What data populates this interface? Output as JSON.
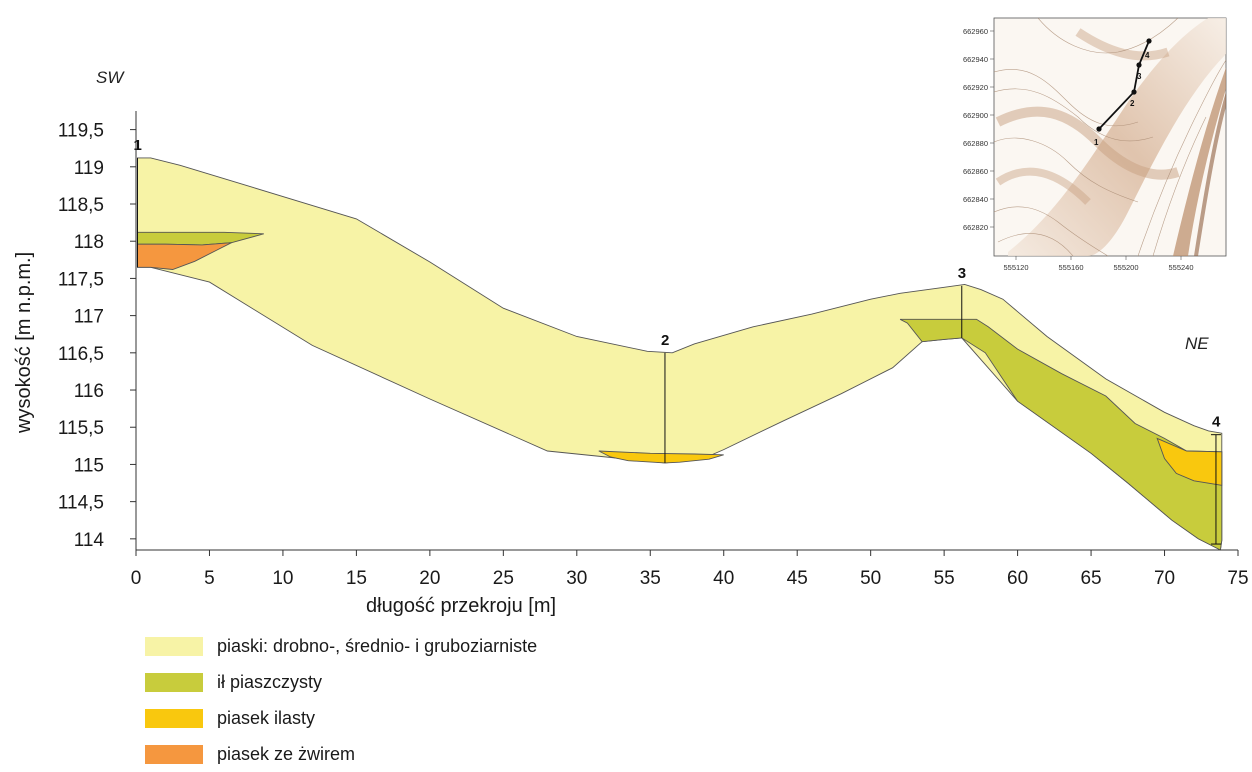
{
  "chart_data": {
    "type": "area",
    "xlabel": "długość przekroju [m]",
    "ylabel": "wysokość [m n.p.m.]",
    "xlim": [
      0,
      75
    ],
    "ylim": [
      113.85,
      119.75
    ],
    "x_ticks": [
      "0",
      "5",
      "10",
      "15",
      "20",
      "25",
      "30",
      "35",
      "40",
      "45",
      "50",
      "55",
      "60",
      "65",
      "70",
      "75"
    ],
    "y_ticks": [
      "114",
      "114,5",
      "115",
      "115,5",
      "116",
      "116,5",
      "117",
      "117,5",
      "118",
      "118,5",
      "119",
      "119,5"
    ],
    "direction_left": "SW",
    "direction_right": "NE",
    "boreholes": [
      {
        "label": "1",
        "x": 0.1,
        "top": 119.12,
        "bottom": 117.65
      },
      {
        "label": "2",
        "x": 36.0,
        "top": 116.5,
        "bottom": 115.02
      },
      {
        "label": "3",
        "x": 56.2,
        "top": 117.4,
        "bottom": 116.7
      },
      {
        "label": "4",
        "x": 73.5,
        "top": 115.4,
        "bottom": 113.93
      }
    ],
    "series": [
      {
        "name": "piaski: drobno-, średnio- i gruboziarniste",
        "color": "#F7F3A6",
        "polygon": [
          [
            0.1,
            119.12
          ],
          [
            1,
            119.12
          ],
          [
            3,
            119.02
          ],
          [
            8,
            118.72
          ],
          [
            15,
            118.3
          ],
          [
            20,
            117.72
          ],
          [
            25,
            117.1
          ],
          [
            30,
            116.72
          ],
          [
            34.8,
            116.52
          ],
          [
            36.5,
            116.5
          ],
          [
            38,
            116.62
          ],
          [
            42,
            116.85
          ],
          [
            46,
            117.02
          ],
          [
            50,
            117.22
          ],
          [
            52,
            117.3
          ],
          [
            55,
            117.38
          ],
          [
            56.4,
            117.42
          ],
          [
            57.5,
            117.35
          ],
          [
            59,
            117.22
          ],
          [
            62,
            116.72
          ],
          [
            66,
            116.15
          ],
          [
            70,
            115.7
          ],
          [
            72,
            115.52
          ],
          [
            73,
            115.45
          ],
          [
            73.9,
            115.42
          ],
          [
            73.9,
            113.98
          ],
          [
            73.8,
            113.85
          ],
          [
            72.3,
            114.0
          ],
          [
            70.5,
            114.25
          ],
          [
            67.5,
            114.75
          ],
          [
            65,
            115.15
          ],
          [
            60,
            115.85
          ],
          [
            56.2,
            116.7
          ],
          [
            55,
            116.68
          ],
          [
            53.5,
            116.65
          ],
          [
            51.5,
            116.3
          ],
          [
            48,
            115.95
          ],
          [
            44,
            115.58
          ],
          [
            40,
            115.2
          ],
          [
            38.5,
            115.07
          ],
          [
            36,
            115.02
          ],
          [
            33,
            115.08
          ],
          [
            28,
            115.18
          ],
          [
            20,
            115.88
          ],
          [
            12,
            116.6
          ],
          [
            5,
            117.45
          ],
          [
            3,
            117.55
          ],
          [
            1,
            117.65
          ],
          [
            0.1,
            117.65
          ]
        ]
      },
      {
        "name": "ił piaszczysty",
        "color": "#C8CC3C",
        "polygon": [
          [
            52,
            116.95
          ],
          [
            56.2,
            116.95
          ],
          [
            57.2,
            116.95
          ],
          [
            58,
            116.85
          ],
          [
            60,
            116.55
          ],
          [
            63,
            116.22
          ],
          [
            66,
            115.92
          ],
          [
            68,
            115.55
          ],
          [
            70,
            115.35
          ],
          [
            71.5,
            115.18
          ],
          [
            73.9,
            115.17
          ],
          [
            73.9,
            113.98
          ],
          [
            73.8,
            113.85
          ],
          [
            72.3,
            114.0
          ],
          [
            70.5,
            114.25
          ],
          [
            67.5,
            114.75
          ],
          [
            65,
            115.15
          ],
          [
            60,
            115.85
          ],
          [
            57.8,
            116.5
          ],
          [
            56.2,
            116.7
          ],
          [
            55,
            116.68
          ],
          [
            53.5,
            116.65
          ],
          [
            52.5,
            116.9
          ]
        ]
      },
      {
        "name": "piasek ilasty",
        "color": "#F9C80E",
        "layers": [
          [
            [
              31.5,
              115.18
            ],
            [
              35,
              115.15
            ],
            [
              38,
              115.14
            ],
            [
              40,
              115.13
            ],
            [
              39,
              115.07
            ],
            [
              37,
              115.03
            ],
            [
              36,
              115.02
            ],
            [
              33.5,
              115.05
            ],
            [
              32.3,
              115.1
            ]
          ],
          [
            [
              69.5,
              115.35
            ],
            [
              71.5,
              115.18
            ],
            [
              73.9,
              115.17
            ],
            [
              73.9,
              114.72
            ],
            [
              72,
              114.78
            ],
            [
              70.8,
              114.88
            ],
            [
              70,
              115.08
            ]
          ]
        ]
      },
      {
        "name": "piasek ze żwirem",
        "color": "#F5973F",
        "polygon": [
          [
            0.1,
            117.96
          ],
          [
            2,
            117.96
          ],
          [
            4.5,
            117.95
          ],
          [
            6.5,
            117.98
          ],
          [
            5.5,
            117.88
          ],
          [
            4,
            117.73
          ],
          [
            2.5,
            117.62
          ],
          [
            1,
            117.65
          ],
          [
            0.1,
            117.65
          ]
        ]
      }
    ],
    "extra_clay_lens": [
      [
        0.1,
        118.12
      ],
      [
        3,
        118.12
      ],
      [
        6,
        118.12
      ],
      [
        8.7,
        118.1
      ],
      [
        6.5,
        117.98
      ],
      [
        4.5,
        117.95
      ],
      [
        2,
        117.96
      ],
      [
        0.1,
        117.96
      ]
    ]
  },
  "legend": [
    {
      "label": "piaski: drobno-, średnio- i gruboziarniste",
      "color": "#F7F3A6"
    },
    {
      "label": "ił piaszczysty",
      "color": "#C8CC3C"
    },
    {
      "label": "piasek ilasty",
      "color": "#F9C80E"
    },
    {
      "label": "piasek ze żwirem",
      "color": "#F5973F"
    }
  ],
  "inset_map": {
    "y_ticks": [
      "662960",
      "662940",
      "662920",
      "662900",
      "662880",
      "662860",
      "662840",
      "662820"
    ],
    "x_ticks": [
      "555120",
      "555160",
      "555200",
      "555240"
    ],
    "points": [
      {
        "label": "1"
      },
      {
        "label": "2"
      },
      {
        "label": "3"
      },
      {
        "label": "4"
      }
    ]
  }
}
